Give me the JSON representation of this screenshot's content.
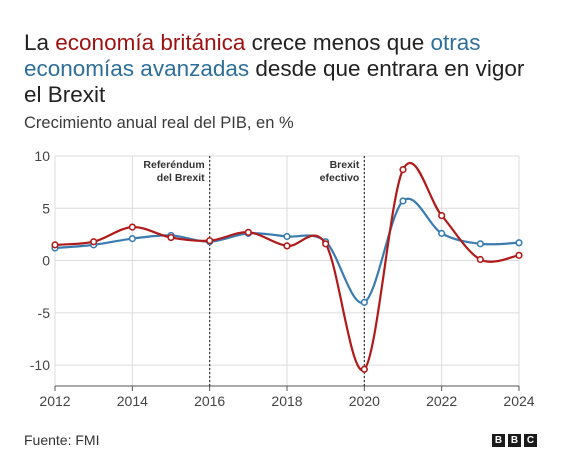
{
  "title": {
    "p1": "La ",
    "p2": "economía británica",
    "p3": " crece menos que ",
    "p4": "otras economías avanzadas",
    "p5": " desde que entrara en vigor el Brexit"
  },
  "subtitle": "Crecimiento anual real del PIB, en %",
  "footer": "Fuente: FMI",
  "logo": [
    "B",
    "B",
    "C"
  ],
  "colors": {
    "uk": "#b01a1a",
    "others": "#3b7cb0",
    "uk_text": "#9e1111",
    "others_text": "#2e6f9a"
  },
  "chart_data": {
    "type": "line",
    "title": "",
    "xlabel": "",
    "ylabel": "",
    "xlim": [
      2012,
      2024
    ],
    "ylim": [
      -12,
      10
    ],
    "x_ticks": [
      2012,
      2014,
      2016,
      2018,
      2020,
      2022,
      2024
    ],
    "y_ticks": [
      10,
      5,
      0,
      -5,
      -10
    ],
    "y_tick_labels": [
      "10",
      "5",
      "0",
      "-5",
      "-10"
    ],
    "grid": true,
    "x": [
      2012,
      2013,
      2014,
      2015,
      2016,
      2017,
      2018,
      2019,
      2020,
      2021,
      2022,
      2023,
      2024
    ],
    "series": [
      {
        "key": "uk",
        "values": [
          1.5,
          1.8,
          3.2,
          2.2,
          1.9,
          2.7,
          1.4,
          1.6,
          -10.4,
          8.7,
          4.3,
          0.1,
          0.5
        ]
      },
      {
        "key": "others",
        "values": [
          1.2,
          1.5,
          2.1,
          2.4,
          1.8,
          2.6,
          2.3,
          1.8,
          -4.0,
          5.7,
          2.6,
          1.6,
          1.7
        ]
      }
    ],
    "annotations": [
      {
        "x": 2016,
        "lines": [
          "Referéndum",
          "del Brexit"
        ]
      },
      {
        "x": 2020,
        "lines": [
          "Brexit",
          "efectivo"
        ]
      }
    ]
  }
}
